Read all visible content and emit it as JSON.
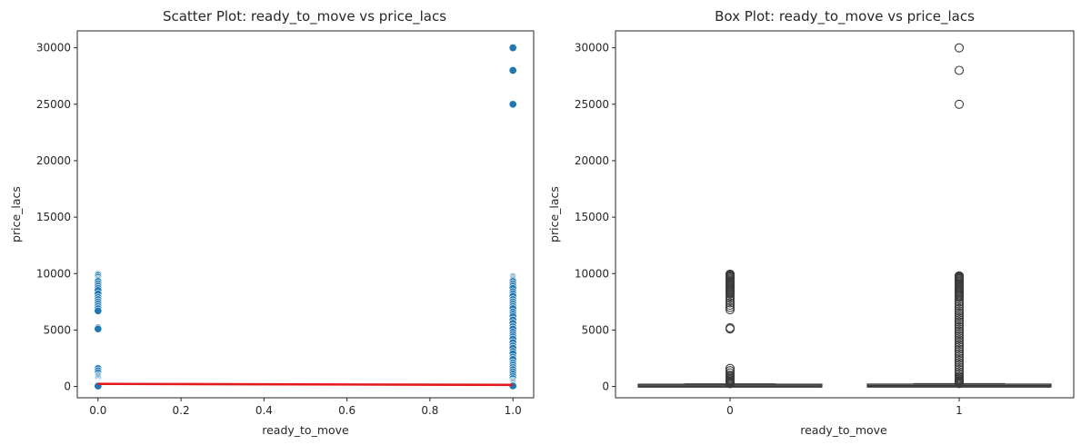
{
  "chart_data": [
    {
      "type": "scatter",
      "title": "Scatter Plot: ready_to_move vs price_lacs",
      "xlabel": "ready_to_move",
      "ylabel": "price_lacs",
      "xlim": [
        -0.05,
        1.05
      ],
      "ylim": [
        -1000,
        31500
      ],
      "x_ticks": [
        "0.0",
        "0.2",
        "0.4",
        "0.6",
        "0.8",
        "1.0"
      ],
      "y_ticks": [
        "0",
        "5000",
        "10000",
        "15000",
        "20000",
        "25000",
        "30000"
      ],
      "grid": false,
      "point_color": "#1f77b4",
      "regression_color": "#e31a1c",
      "series": [
        {
          "x": [
            0,
            0,
            0,
            0,
            0,
            0,
            0,
            0,
            0,
            0,
            0,
            0,
            0,
            0,
            0,
            0,
            0,
            0,
            0,
            0,
            0,
            0,
            0,
            0,
            0,
            0,
            0,
            0,
            0,
            0,
            0,
            0,
            0,
            0,
            0,
            0,
            0,
            0,
            0
          ],
          "y": [
            9900,
            9800,
            9650,
            9500,
            9400,
            9300,
            9100,
            8900,
            8700,
            8500,
            8200,
            7900,
            7700,
            7500,
            7300,
            7100,
            6900,
            6700,
            5200,
            5100,
            1600,
            1400,
            1200,
            1000,
            900,
            800,
            700,
            600,
            500,
            400,
            350,
            300,
            250,
            200,
            150,
            100,
            80,
            60,
            40
          ]
        },
        {
          "x": [
            1,
            1,
            1,
            1,
            1,
            1,
            1,
            1,
            1,
            1,
            1,
            1,
            1,
            1,
            1,
            1,
            1,
            1,
            1,
            1,
            1,
            1,
            1,
            1,
            1,
            1,
            1,
            1,
            1,
            1,
            1,
            1,
            1,
            1,
            1,
            1,
            1,
            1,
            1,
            1,
            1,
            1,
            1,
            1,
            1,
            1,
            1,
            1,
            1,
            1,
            1
          ],
          "y": [
            30000,
            28000,
            25000,
            9700,
            9600,
            9500,
            9400,
            9300,
            9100,
            8900,
            8700,
            8400,
            8200,
            8000,
            7700,
            7500,
            7300,
            7100,
            6900,
            6600,
            6400,
            6200,
            5900,
            5600,
            5300,
            5100,
            4800,
            4600,
            4400,
            4200,
            3900,
            3600,
            3400,
            3100,
            2900,
            2600,
            2400,
            2100,
            1900,
            1700,
            1500,
            1300,
            1100,
            900,
            700,
            500,
            400,
            300,
            200,
            100,
            50
          ]
        }
      ],
      "regression_line": {
        "x": [
          0,
          1
        ],
        "y": [
          230,
          140
        ]
      }
    },
    {
      "type": "box",
      "title": "Box Plot: ready_to_move vs price_lacs",
      "xlabel": "ready_to_move",
      "ylabel": "price_lacs",
      "categories": [
        "0",
        "1"
      ],
      "ylim": [
        -1000,
        31500
      ],
      "y_ticks": [
        "0",
        "5000",
        "10000",
        "15000",
        "20000",
        "25000",
        "30000"
      ],
      "grid": false,
      "box_color": "#ffffff",
      "edge_color": "#3b3b3b",
      "boxes": [
        {
          "category": "0",
          "q1": 35,
          "median": 60,
          "q3": 110,
          "whisker_low": 5,
          "whisker_high": 220,
          "outliers": [
            9950,
            9900,
            9850,
            9800,
            9750,
            9700,
            9600,
            9500,
            9400,
            9300,
            9200,
            9100,
            9000,
            8900,
            8800,
            8700,
            8600,
            8500,
            8400,
            8300,
            8200,
            8000,
            7800,
            7600,
            7400,
            7200,
            7000,
            6800,
            5200,
            5100,
            1600,
            1400,
            1200,
            1000,
            900,
            800,
            700,
            600,
            500,
            450,
            400,
            350,
            300,
            250
          ]
        },
        {
          "category": "1",
          "q1": 38,
          "median": 65,
          "q3": 120,
          "whisker_low": 5,
          "whisker_high": 240,
          "outliers": [
            30000,
            28000,
            25000,
            9800,
            9750,
            9700,
            9650,
            9600,
            9550,
            9500,
            9400,
            9300,
            9200,
            9100,
            9000,
            8900,
            8800,
            8700,
            8600,
            8500,
            8400,
            8300,
            8200,
            8100,
            8000,
            7900,
            7700,
            7500,
            7300,
            7100,
            6900,
            6700,
            6500,
            6300,
            6100,
            5900,
            5700,
            5500,
            5300,
            5100,
            4900,
            4700,
            4500,
            4300,
            4100,
            3900,
            3700,
            3500,
            3300,
            3100,
            2900,
            2700,
            2500,
            2300,
            2100,
            1900,
            1700,
            1500,
            1300,
            1100,
            900,
            800,
            700,
            600,
            500,
            450,
            400,
            350,
            300,
            280,
            260
          ]
        }
      ]
    }
  ]
}
